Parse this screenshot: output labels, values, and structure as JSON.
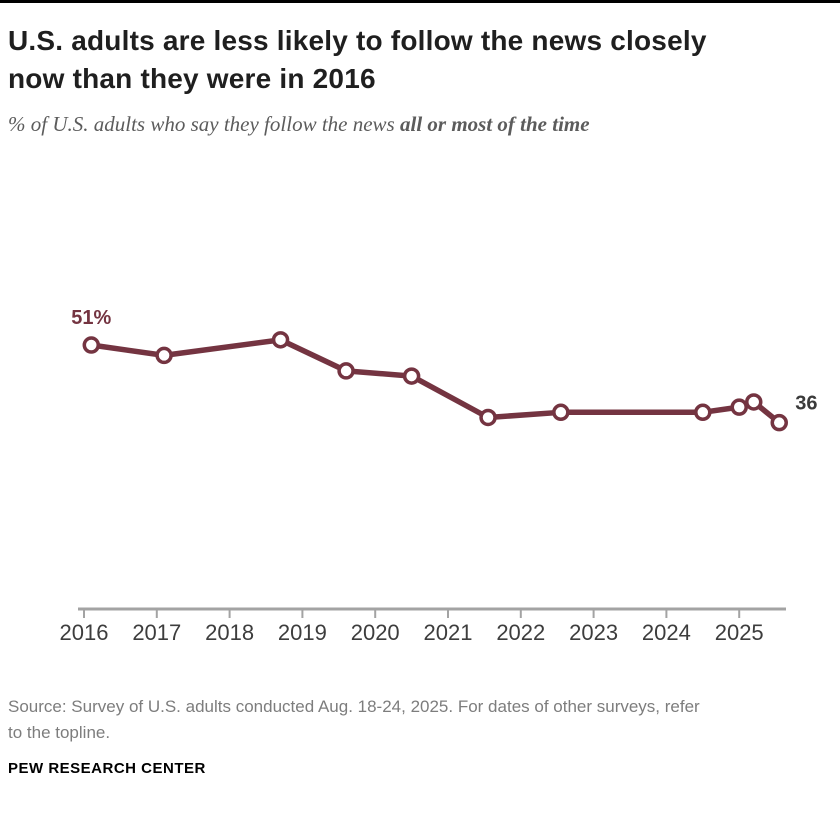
{
  "header": {
    "title_line1": "U.S. adults are less likely to follow the news closely",
    "title_line2": "now than they were in 2016",
    "subtitle_prefix": "% of U.S. adults who say they follow the news ",
    "subtitle_emphasis": "all or most of the time"
  },
  "chart_data": {
    "type": "line",
    "title": "U.S. adults are less likely to follow the news closely now than they were in 2016",
    "series_name": "% of U.S. adults who say they follow the news all or most of the time",
    "x": [
      2016.1,
      2017.1,
      2018.7,
      2019.6,
      2020.5,
      2021.55,
      2022.55,
      2024.5,
      2025.0,
      2025.2,
      2025.55
    ],
    "values": [
      51,
      49,
      52,
      46,
      45,
      37,
      38,
      38,
      39,
      40,
      36
    ],
    "x_ticks": [
      2016,
      2017,
      2018,
      2019,
      2020,
      2021,
      2022,
      2023,
      2024,
      2025
    ],
    "xlim": [
      2015.9,
      2025.9
    ],
    "ylim": [
      0,
      60
    ],
    "grid": false,
    "legend": "none",
    "first_point_label": "51%",
    "last_point_label": "36",
    "line_color": "#743441",
    "marker_fill": "#ffffff",
    "first_label_color": "#743441",
    "last_label_color": "#3b3b3b",
    "axis_color": "#a3a3a3",
    "tick_label_color": "#3d3d3d"
  },
  "footer": {
    "source_line1": "Source: Survey of U.S. adults conducted Aug. 18-24, 2025. For dates of other surveys, refer",
    "source_line2": "to the topline.",
    "brand": "PEW RESEARCH CENTER"
  }
}
